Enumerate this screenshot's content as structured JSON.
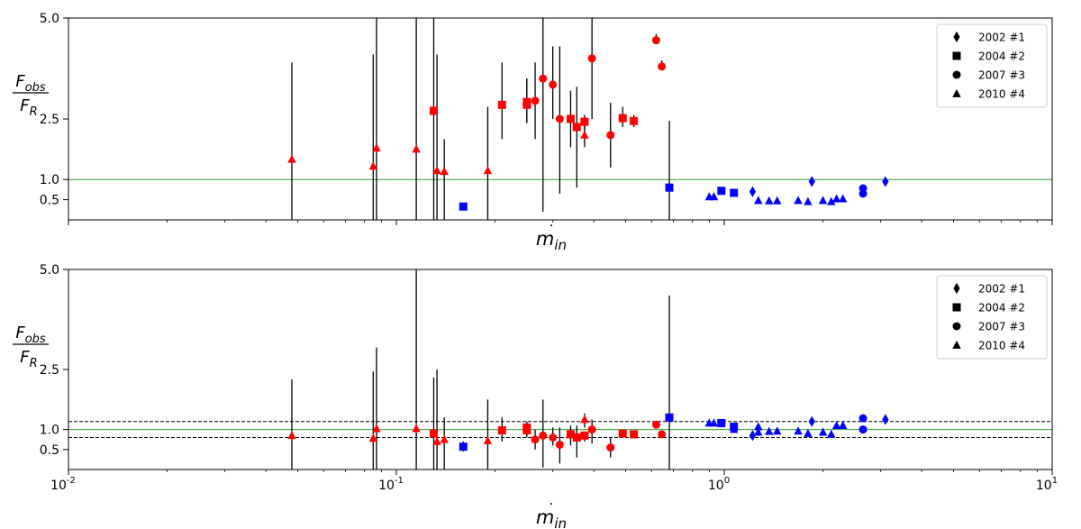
{
  "chart_data": [
    {
      "type": "scatter",
      "panel": "top",
      "xscale": "log",
      "xlim": [
        0.01,
        10
      ],
      "ylim": [
        0.0,
        5.0
      ],
      "xlabel": "ṁ_in",
      "ylabel": "F_obs / F_R",
      "ylabel_num": "F",
      "ylabel_num_sub": "obs",
      "ylabel_den": "F",
      "ylabel_den_sub": "R",
      "xlabel_main": "m",
      "xlabel_sub": "in",
      "xlabel_dot": "˙",
      "x_tick_labels": [
        "10",
        "10",
        "10",
        "10"
      ],
      "x_tick_exponents": [
        "-2",
        "-1",
        "0",
        "1"
      ],
      "y_ticks": [
        0.5,
        1.0,
        2.5,
        5.0
      ],
      "y_tick_labels": [
        "0.5",
        "1.0",
        "2.5",
        "5.0"
      ],
      "reference_lines": [
        {
          "y": 1.0,
          "color": "#2ca02c",
          "style": "solid"
        }
      ],
      "legend": {
        "position": "upper-right",
        "entries": [
          {
            "label": "2002 #1",
            "marker": "diamond"
          },
          {
            "label": "2004 #2",
            "marker": "square"
          },
          {
            "label": "2007 #3",
            "marker": "circle"
          },
          {
            "label": "2010 #4",
            "marker": "triangle"
          }
        ]
      },
      "colors": {
        "red": "#ff0000",
        "blue": "#0000ff",
        "errorbar": "#000000"
      },
      "series": [
        {
          "marker": "triangle",
          "color": "red",
          "points": [
            {
              "x": 0.048,
              "y": 1.5,
              "ylo": 0.0,
              "yhi": 3.9
            },
            {
              "x": 0.085,
              "y": 1.33,
              "ylo": 0.0,
              "yhi": 4.1
            },
            {
              "x": 0.087,
              "y": 1.78,
              "ylo": 0.0,
              "yhi": 5.0
            },
            {
              "x": 0.115,
              "y": 1.75,
              "ylo": 0.0,
              "yhi": 5.0
            },
            {
              "x": 0.133,
              "y": 1.22,
              "ylo": 0.0,
              "yhi": 4.1
            },
            {
              "x": 0.14,
              "y": 1.2,
              "ylo": 0.0,
              "yhi": 2.0
            },
            {
              "x": 0.19,
              "y": 1.22,
              "ylo": 0.0,
              "yhi": 2.8
            },
            {
              "x": 0.375,
              "y": 2.1,
              "ylo": 2.0,
              "yhi": 2.5
            }
          ]
        },
        {
          "marker": "square",
          "color": "red",
          "points": [
            {
              "x": 0.13,
              "y": 2.7,
              "ylo": 0.0,
              "yhi": 5.0
            },
            {
              "x": 0.21,
              "y": 2.85,
              "ylo": 2.0,
              "yhi": 3.9
            },
            {
              "x": 0.25,
              "y": 2.92,
              "ylo": 2.4,
              "yhi": 3.5
            },
            {
              "x": 0.25,
              "y": 2.85,
              "ylo": 2.4,
              "yhi": 3.5
            },
            {
              "x": 0.34,
              "y": 2.5,
              "ylo": 1.8,
              "yhi": 3.2
            },
            {
              "x": 0.355,
              "y": 2.3,
              "ylo": 0.8,
              "yhi": 3.3
            },
            {
              "x": 0.375,
              "y": 2.43,
              "ylo": 1.8,
              "yhi": 2.6
            },
            {
              "x": 0.49,
              "y": 2.52,
              "ylo": 2.3,
              "yhi": 2.8
            },
            {
              "x": 0.53,
              "y": 2.45,
              "ylo": 2.3,
              "yhi": 2.6
            }
          ]
        },
        {
          "marker": "circle",
          "color": "red",
          "points": [
            {
              "x": 0.265,
              "y": 2.95,
              "ylo": 2.0,
              "yhi": 3.9
            },
            {
              "x": 0.28,
              "y": 3.5,
              "ylo": 0.2,
              "yhi": 5.0
            },
            {
              "x": 0.3,
              "y": 3.35,
              "ylo": 2.5,
              "yhi": 4.3
            },
            {
              "x": 0.315,
              "y": 2.5,
              "ylo": 0.65,
              "yhi": 4.3
            },
            {
              "x": 0.395,
              "y": 4.0,
              "ylo": 2.5,
              "yhi": 5.0
            },
            {
              "x": 0.45,
              "y": 2.1,
              "ylo": 1.3,
              "yhi": 2.9
            },
            {
              "x": 0.62,
              "y": 4.45,
              "ylo": 4.35,
              "yhi": 4.6
            },
            {
              "x": 0.645,
              "y": 3.8,
              "ylo": 3.7,
              "yhi": 3.95
            }
          ]
        },
        {
          "marker": "square",
          "color": "blue",
          "points": [
            {
              "x": 0.16,
              "y": 0.33,
              "ylo": 0.25,
              "yhi": 0.42
            },
            {
              "x": 0.68,
              "y": 0.8,
              "ylo": 0.0,
              "yhi": 2.45
            },
            {
              "x": 0.98,
              "y": 0.72
            },
            {
              "x": 1.07,
              "y": 0.67
            }
          ]
        },
        {
          "marker": "diamond",
          "color": "blue",
          "points": [
            {
              "x": 1.22,
              "y": 0.7
            },
            {
              "x": 1.85,
              "y": 0.95
            },
            {
              "x": 3.1,
              "y": 0.95
            }
          ]
        },
        {
          "marker": "circle",
          "color": "blue",
          "points": [
            {
              "x": 2.65,
              "y": 0.78
            },
            {
              "x": 2.65,
              "y": 0.65
            }
          ]
        },
        {
          "marker": "triangle",
          "color": "blue",
          "points": [
            {
              "x": 0.9,
              "y": 0.57
            },
            {
              "x": 0.93,
              "y": 0.57
            },
            {
              "x": 1.27,
              "y": 0.48
            },
            {
              "x": 1.37,
              "y": 0.47
            },
            {
              "x": 1.45,
              "y": 0.47
            },
            {
              "x": 1.68,
              "y": 0.48
            },
            {
              "x": 1.8,
              "y": 0.45
            },
            {
              "x": 2.0,
              "y": 0.48
            },
            {
              "x": 2.12,
              "y": 0.45
            },
            {
              "x": 2.2,
              "y": 0.52
            },
            {
              "x": 2.3,
              "y": 0.52
            }
          ]
        }
      ]
    },
    {
      "type": "scatter",
      "panel": "bottom",
      "xscale": "log",
      "xlim": [
        0.01,
        10
      ],
      "ylim": [
        0.0,
        5.0
      ],
      "xlabel": "ṁ_in",
      "ylabel": "F_obs / F_R",
      "ylabel_num": "F",
      "ylabel_num_sub": "obs",
      "ylabel_den": "F",
      "ylabel_den_sub": "R",
      "xlabel_main": "m",
      "xlabel_sub": "in",
      "xlabel_dot": "˙",
      "x_tick_labels": [
        "10",
        "10",
        "10",
        "10"
      ],
      "x_tick_exponents": [
        "-2",
        "-1",
        "0",
        "1"
      ],
      "y_ticks": [
        0.5,
        1.0,
        2.5,
        5.0
      ],
      "y_tick_labels": [
        "0.5",
        "1.0",
        "2.5",
        "5.0"
      ],
      "reference_lines": [
        {
          "y": 1.0,
          "color": "#2ca02c",
          "style": "solid"
        },
        {
          "y": 1.2,
          "color": "#000000",
          "style": "dashed"
        },
        {
          "y": 0.8,
          "color": "#000000",
          "style": "dashed"
        }
      ],
      "legend": {
        "position": "upper-right",
        "entries": [
          {
            "label": "2002 #1",
            "marker": "diamond"
          },
          {
            "label": "2004 #2",
            "marker": "square"
          },
          {
            "label": "2007 #3",
            "marker": "circle"
          },
          {
            "label": "2010 #4",
            "marker": "triangle"
          }
        ]
      },
      "colors": {
        "red": "#ff0000",
        "blue": "#0000ff",
        "errorbar": "#000000"
      },
      "series": [
        {
          "marker": "triangle",
          "color": "red",
          "points": [
            {
              "x": 0.048,
              "y": 0.85,
              "ylo": 0.0,
              "yhi": 2.25
            },
            {
              "x": 0.085,
              "y": 0.78,
              "ylo": 0.0,
              "yhi": 2.45
            },
            {
              "x": 0.087,
              "y": 1.02,
              "ylo": 0.0,
              "yhi": 3.05
            },
            {
              "x": 0.115,
              "y": 1.02,
              "ylo": 0.0,
              "yhi": 5.0
            },
            {
              "x": 0.133,
              "y": 0.7,
              "ylo": 0.0,
              "yhi": 2.5
            },
            {
              "x": 0.14,
              "y": 0.75,
              "ylo": 0.0,
              "yhi": 1.3
            },
            {
              "x": 0.19,
              "y": 0.72,
              "ylo": 0.0,
              "yhi": 1.75
            },
            {
              "x": 0.375,
              "y": 1.25,
              "ylo": 1.05,
              "yhi": 1.4
            }
          ]
        },
        {
          "marker": "square",
          "color": "red",
          "points": [
            {
              "x": 0.13,
              "y": 0.9,
              "ylo": 0.0,
              "yhi": 2.3
            },
            {
              "x": 0.21,
              "y": 0.98,
              "ylo": 0.7,
              "yhi": 1.3
            },
            {
              "x": 0.25,
              "y": 1.05,
              "ylo": 0.85,
              "yhi": 1.2
            },
            {
              "x": 0.25,
              "y": 0.98,
              "ylo": 0.8,
              "yhi": 1.15
            },
            {
              "x": 0.34,
              "y": 0.88,
              "ylo": 0.6,
              "yhi": 1.1
            },
            {
              "x": 0.355,
              "y": 0.8,
              "ylo": 0.3,
              "yhi": 1.1
            },
            {
              "x": 0.375,
              "y": 0.85,
              "ylo": 0.7,
              "yhi": 0.95
            },
            {
              "x": 0.49,
              "y": 0.9,
              "ylo": 0.8,
              "yhi": 1.0
            },
            {
              "x": 0.53,
              "y": 0.88,
              "ylo": 0.8,
              "yhi": 0.95
            }
          ]
        },
        {
          "marker": "circle",
          "color": "red",
          "points": [
            {
              "x": 0.265,
              "y": 0.75,
              "ylo": 0.5,
              "yhi": 1.0
            },
            {
              "x": 0.28,
              "y": 0.85,
              "ylo": 0.05,
              "yhi": 1.75
            },
            {
              "x": 0.3,
              "y": 0.8,
              "ylo": 0.6,
              "yhi": 1.05
            },
            {
              "x": 0.315,
              "y": 0.62,
              "ylo": 0.15,
              "yhi": 1.05
            },
            {
              "x": 0.395,
              "y": 1.0,
              "ylo": 0.65,
              "yhi": 1.25
            },
            {
              "x": 0.45,
              "y": 0.55,
              "ylo": 0.3,
              "yhi": 0.8
            },
            {
              "x": 0.62,
              "y": 1.12,
              "ylo": 1.08,
              "yhi": 1.18
            },
            {
              "x": 0.645,
              "y": 0.88,
              "ylo": 0.84,
              "yhi": 0.92
            }
          ]
        },
        {
          "marker": "square",
          "color": "blue",
          "points": [
            {
              "x": 0.16,
              "y": 0.57,
              "ylo": 0.45,
              "yhi": 0.7
            },
            {
              "x": 0.68,
              "y": 1.3,
              "ylo": 0.0,
              "yhi": 4.35
            },
            {
              "x": 0.98,
              "y": 1.16
            },
            {
              "x": 1.07,
              "y": 1.07
            }
          ]
        },
        {
          "marker": "diamond",
          "color": "blue",
          "points": [
            {
              "x": 1.22,
              "y": 0.85
            },
            {
              "x": 1.85,
              "y": 1.2
            },
            {
              "x": 3.1,
              "y": 1.25
            }
          ]
        },
        {
          "marker": "circle",
          "color": "blue",
          "points": [
            {
              "x": 2.65,
              "y": 1.28
            },
            {
              "x": 2.65,
              "y": 1.0
            }
          ]
        },
        {
          "marker": "triangle",
          "color": "blue",
          "points": [
            {
              "x": 0.9,
              "y": 1.16
            },
            {
              "x": 0.93,
              "y": 1.16
            },
            {
              "x": 1.07,
              "y": 1.0
            },
            {
              "x": 1.27,
              "y": 1.07
            },
            {
              "x": 1.27,
              "y": 0.93
            },
            {
              "x": 1.37,
              "y": 0.95
            },
            {
              "x": 1.45,
              "y": 0.96
            },
            {
              "x": 1.68,
              "y": 0.96
            },
            {
              "x": 1.8,
              "y": 0.9
            },
            {
              "x": 2.0,
              "y": 0.93
            },
            {
              "x": 2.12,
              "y": 0.88
            },
            {
              "x": 2.2,
              "y": 1.1
            },
            {
              "x": 2.3,
              "y": 1.1
            }
          ]
        }
      ]
    }
  ]
}
